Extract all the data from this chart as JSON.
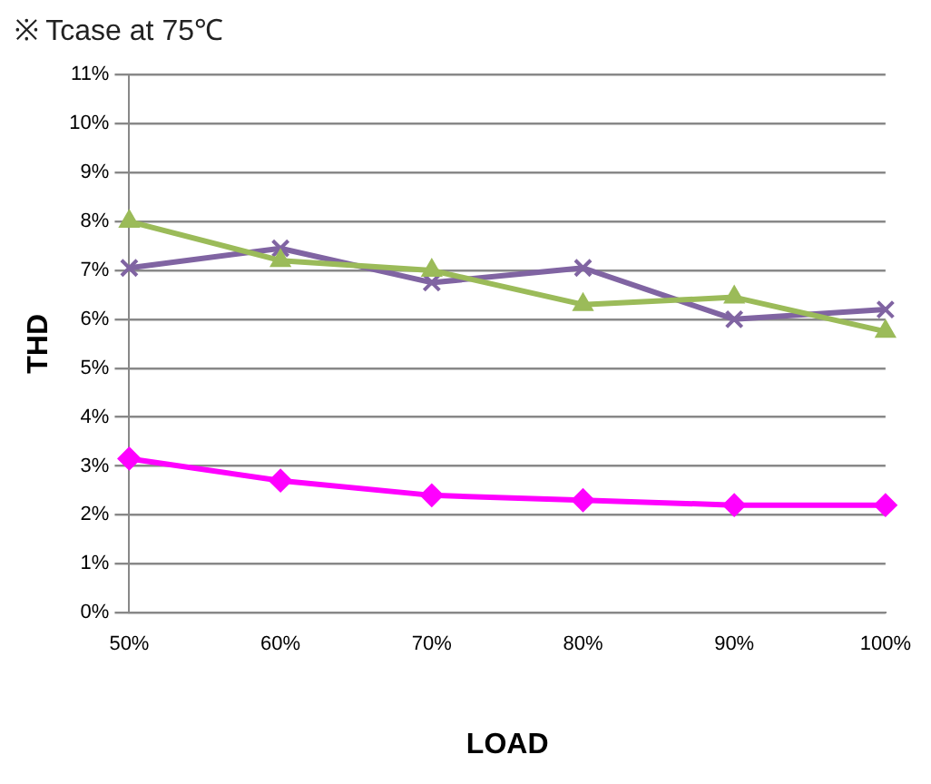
{
  "chart_data": {
    "type": "line",
    "title": "※ Tcase at 75℃",
    "xlabel": "LOAD",
    "ylabel": "THD",
    "categories": [
      "50%",
      "60%",
      "70%",
      "80%",
      "90%",
      "100%"
    ],
    "series": [
      {
        "color": "#9bbb59",
        "marker": "triangle",
        "values": [
          8.0,
          7.2,
          7.0,
          6.3,
          6.45,
          5.75
        ]
      },
      {
        "color": "#8064a2",
        "marker": "cross",
        "values": [
          7.05,
          7.45,
          6.75,
          7.05,
          6.0,
          6.2
        ]
      },
      {
        "color": "#ff00ff",
        "marker": "diamond",
        "values": [
          3.15,
          2.7,
          2.4,
          2.3,
          2.2,
          2.2
        ]
      }
    ],
    "ylim": [
      0,
      11
    ],
    "yticks": [
      {
        "value": 0,
        "label": "0%"
      },
      {
        "value": 1,
        "label": "1%"
      },
      {
        "value": 2,
        "label": "2%"
      },
      {
        "value": 3,
        "label": "3%"
      },
      {
        "value": 4,
        "label": "4%"
      },
      {
        "value": 5,
        "label": "5%"
      },
      {
        "value": 6,
        "label": "6%"
      },
      {
        "value": 7,
        "label": "7%"
      },
      {
        "value": 8,
        "label": "8%"
      },
      {
        "value": 9,
        "label": "9%"
      },
      {
        "value": 10,
        "label": "10%"
      },
      {
        "value": 11,
        "label": "11%"
      }
    ],
    "grid": "y",
    "line_style": "solid",
    "legend": false
  }
}
